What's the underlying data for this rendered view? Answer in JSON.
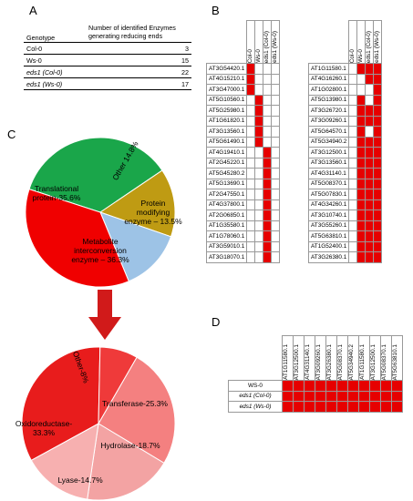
{
  "panels": {
    "a": "A",
    "b": "B",
    "c": "C",
    "d": "D"
  },
  "panelA": {
    "header": [
      "Genotype",
      "Number of identified Enzymes generating reducing ends"
    ],
    "rows": [
      {
        "genotype": "Col-0",
        "count": "3"
      },
      {
        "genotype": "Ws-0",
        "count": "15"
      },
      {
        "genotype": "eds1 (Col-0)",
        "count": "22"
      },
      {
        "genotype": "eds1 (Ws-0)",
        "count": "17"
      }
    ]
  },
  "panelB": {
    "columns": [
      "Col-0",
      "Ws-0",
      "eds1 (Col-0)",
      "eds1 (Ws-0)"
    ],
    "left": [
      {
        "gene": "AT3G54420.1",
        "on": [
          1,
          0,
          0,
          0
        ]
      },
      {
        "gene": "AT4G15210.1",
        "on": [
          1,
          0,
          0,
          0
        ]
      },
      {
        "gene": "AT3G47000.1",
        "on": [
          1,
          0,
          0,
          0
        ]
      },
      {
        "gene": "AT5G10560.1",
        "on": [
          0,
          1,
          0,
          0
        ]
      },
      {
        "gene": "AT5G25980.1",
        "on": [
          0,
          1,
          0,
          0
        ]
      },
      {
        "gene": "AT1G61820.1",
        "on": [
          0,
          1,
          0,
          0
        ]
      },
      {
        "gene": "AT3G13560.1",
        "on": [
          0,
          1,
          0,
          0
        ]
      },
      {
        "gene": "AT5G61490.1",
        "on": [
          0,
          1,
          0,
          0
        ]
      },
      {
        "gene": "AT4G19410.1",
        "on": [
          0,
          0,
          1,
          0
        ]
      },
      {
        "gene": "AT2G45220.1",
        "on": [
          0,
          0,
          1,
          0
        ]
      },
      {
        "gene": "AT5G45280.2",
        "on": [
          0,
          0,
          1,
          0
        ]
      },
      {
        "gene": "AT5G13690.1",
        "on": [
          0,
          0,
          1,
          0
        ]
      },
      {
        "gene": "AT2G47550.1",
        "on": [
          0,
          0,
          1,
          0
        ]
      },
      {
        "gene": "AT4G37800.1",
        "on": [
          0,
          0,
          1,
          0
        ]
      },
      {
        "gene": "AT2G06850.1",
        "on": [
          0,
          0,
          1,
          0
        ]
      },
      {
        "gene": "AT1G35580.1",
        "on": [
          0,
          0,
          1,
          0
        ]
      },
      {
        "gene": "AT1G78060.1",
        "on": [
          0,
          0,
          1,
          0
        ]
      },
      {
        "gene": "AT3G59010.1",
        "on": [
          0,
          0,
          1,
          0
        ]
      },
      {
        "gene": "AT3G18070.1",
        "on": [
          0,
          0,
          1,
          0
        ]
      }
    ],
    "right": [
      {
        "gene": "AT1G11580.1",
        "on": [
          0,
          1,
          1,
          1
        ]
      },
      {
        "gene": "AT4G16260.1",
        "on": [
          0,
          0,
          1,
          1
        ]
      },
      {
        "gene": "AT1G02800.1",
        "on": [
          0,
          0,
          0,
          1
        ]
      },
      {
        "gene": "AT5G13980.1",
        "on": [
          0,
          1,
          0,
          1
        ]
      },
      {
        "gene": "AT3G26720.1",
        "on": [
          0,
          1,
          1,
          1
        ]
      },
      {
        "gene": "AT3G09260.1",
        "on": [
          0,
          1,
          1,
          1
        ]
      },
      {
        "gene": "AT5G64570.1",
        "on": [
          0,
          1,
          0,
          1
        ]
      },
      {
        "gene": "AT5G34940.2",
        "on": [
          0,
          1,
          1,
          1
        ]
      },
      {
        "gene": "AT3G12500.1",
        "on": [
          0,
          1,
          1,
          1
        ]
      },
      {
        "gene": "AT3G13560.1",
        "on": [
          0,
          1,
          1,
          1
        ]
      },
      {
        "gene": "AT4G31140.1",
        "on": [
          0,
          1,
          1,
          1
        ]
      },
      {
        "gene": "AT5G08370.1",
        "on": [
          0,
          1,
          1,
          1
        ]
      },
      {
        "gene": "AT5G07830.1",
        "on": [
          0,
          1,
          1,
          1
        ]
      },
      {
        "gene": "AT4G34260.1",
        "on": [
          0,
          1,
          1,
          1
        ]
      },
      {
        "gene": "AT3G10740.1",
        "on": [
          0,
          1,
          1,
          1
        ]
      },
      {
        "gene": "AT3G55260.1",
        "on": [
          0,
          1,
          1,
          1
        ]
      },
      {
        "gene": "AT5G63810.1",
        "on": [
          0,
          1,
          1,
          1
        ]
      },
      {
        "gene": "AT1G52400.1",
        "on": [
          0,
          1,
          1,
          1
        ]
      },
      {
        "gene": "AT3G26380.1",
        "on": [
          0,
          1,
          1,
          1
        ]
      }
    ]
  },
  "chart_data": [
    {
      "type": "pie",
      "slices": [
        {
          "label": "Translational protein-35.6%",
          "value": 35.6,
          "color": "#1aa64a"
        },
        {
          "label": "Other 14.8%",
          "value": 14.8,
          "color": "#bf9b13"
        },
        {
          "label": "Protein modifying enzyme – 13.5%",
          "value": 13.5,
          "color": "#9dc3e6"
        },
        {
          "label": "Metabolite interconversion enzyme – 36.3%",
          "value": 36.3,
          "color": "#f00000"
        }
      ]
    },
    {
      "type": "pie",
      "slices": [
        {
          "label": "Transferase-25.3%",
          "value": 25.3,
          "color": "#f48080"
        },
        {
          "label": "Hydrolase-18.7%",
          "value": 18.7,
          "color": "#f3a3a3"
        },
        {
          "label": "Lyase-14.7%",
          "value": 14.7,
          "color": "#f7b0b0"
        },
        {
          "label": "Oxidoreductase-33.3%",
          "value": 33.3,
          "color": "#e81c1c"
        },
        {
          "label": "Other-8%",
          "value": 8.0,
          "color": "#ef3a3a"
        }
      ]
    }
  ],
  "panelD": {
    "columns": [
      "AT1G11580.1",
      "AT3G12500.1",
      "AT4G31140.1",
      "AT3G09260.1",
      "AT3G26380.1",
      "AT5G08370.1",
      "AT5G34940.2",
      "AT1G11580.1",
      "AT3G12500.1",
      "AT5G08370.1",
      "AT5G63810.1"
    ],
    "rows": [
      {
        "label": "WS-0",
        "on": [
          1,
          1,
          1,
          1,
          1,
          1,
          1,
          1,
          1,
          1,
          1
        ]
      },
      {
        "label": "eds1 (Col-0)",
        "on": [
          1,
          1,
          1,
          1,
          1,
          1,
          1,
          1,
          1,
          1,
          1
        ]
      },
      {
        "label": "eds1 (Ws-0)",
        "on": [
          1,
          1,
          1,
          1,
          1,
          1,
          1,
          1,
          1,
          1,
          1
        ]
      }
    ]
  }
}
